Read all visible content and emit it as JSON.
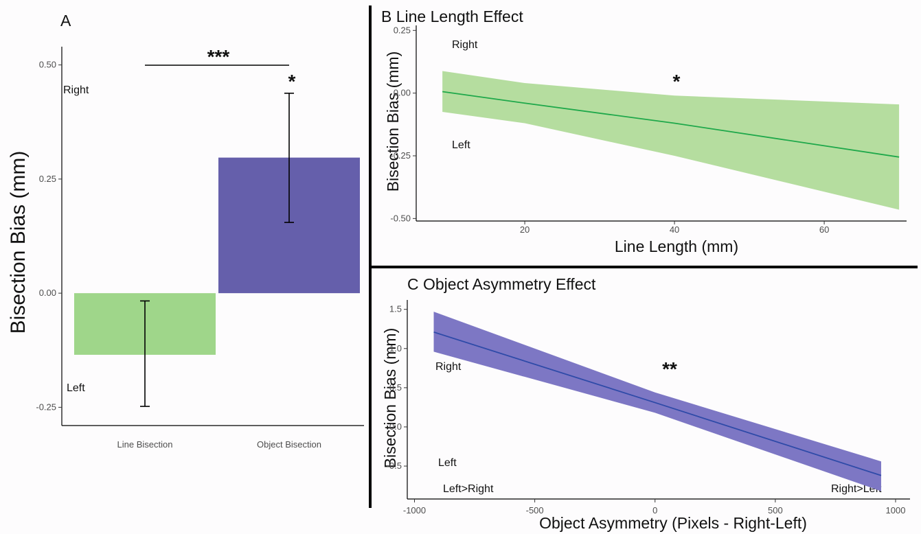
{
  "colors": {
    "green_fill": "#9fd68a",
    "green_band": "#b5dd9f",
    "green_line": "#1ea84a",
    "blue_fill": "#655fab",
    "blue_band": "#7d77c4",
    "blue_line": "#2e4aa8",
    "background": "#fdfcfd"
  },
  "chart_data": [
    {
      "panel": "A",
      "type": "bar",
      "title": "A",
      "ylabel": "Bisection Bias (mm)",
      "xlabel": "",
      "categories": [
        "Line Bisection",
        "Object Bisection"
      ],
      "values": [
        -0.135,
        0.297
      ],
      "error_low": [
        -0.248,
        0.155
      ],
      "error_high": [
        -0.017,
        0.438
      ],
      "ylim": [
        -0.29,
        0.54
      ],
      "yticks": [
        -0.25,
        0.0,
        0.25,
        0.5
      ],
      "ytick_labels": [
        "-0.25",
        "0.00",
        "0.25",
        "0.50"
      ],
      "annotations": {
        "right_label": "Right",
        "left_label": "Left",
        "bracket_stars": "***",
        "object_star": "*"
      }
    },
    {
      "panel": "B",
      "type": "line",
      "title": "B  Line Length Effect",
      "ylabel": "Bisection Bias (mm)",
      "xlabel": "Line Length (mm)",
      "x": [
        9,
        20,
        40,
        70
      ],
      "y": [
        0.006,
        -0.04,
        -0.12,
        -0.255
      ],
      "ci_low": [
        -0.075,
        -0.12,
        -0.25,
        -0.465
      ],
      "ci_high": [
        0.088,
        0.04,
        -0.01,
        -0.045
      ],
      "xlim": [
        5.5,
        71
      ],
      "ylim": [
        -0.51,
        0.27
      ],
      "xticks": [
        20,
        40,
        60
      ],
      "xtick_labels": [
        "20",
        "40",
        "60"
      ],
      "yticks": [
        -0.5,
        -0.25,
        0.0,
        0.25
      ],
      "ytick_labels": [
        "-0.50",
        "-0.25",
        "0.00",
        "0.25"
      ],
      "annotations": {
        "right_label": "Right",
        "left_label": "Left",
        "star": "*"
      }
    },
    {
      "panel": "C",
      "type": "line",
      "title": "C  Object Asymmetry Effect",
      "ylabel": "Bisection Bias (mm)",
      "xlabel": "Object Asymmetry (Pixels - Right-Left)",
      "x": [
        -920,
        0,
        940
      ],
      "y": [
        1.21,
        0.31,
        -0.62
      ],
      "ci_low": [
        0.96,
        0.18,
        -0.82
      ],
      "ci_high": [
        1.47,
        0.44,
        -0.44
      ],
      "xlim": [
        -1030,
        1060
      ],
      "ylim": [
        -0.92,
        1.62
      ],
      "xticks": [
        -1000,
        -500,
        0,
        500,
        1000
      ],
      "xtick_labels": [
        "-1000",
        "-500",
        "0",
        "500",
        "1000"
      ],
      "yticks": [
        -0.5,
        0.0,
        0.5,
        1.0,
        1.5
      ],
      "ytick_labels": [
        "-0.5",
        "0.0",
        "0.5",
        "1.0",
        "1.5"
      ],
      "annotations": {
        "right_label": "Right",
        "left_label": "Left",
        "star": "**",
        "left_gt_right": "Left>Right",
        "right_gt_left": "Right>Left"
      }
    }
  ]
}
